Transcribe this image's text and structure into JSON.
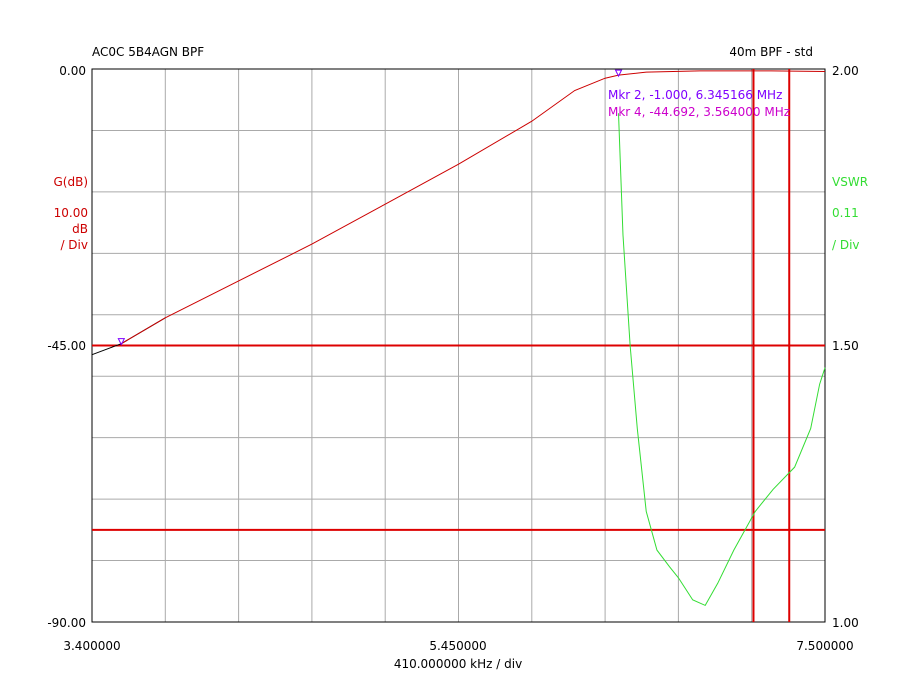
{
  "title_left": "AC0C 5B4AGN BPF",
  "title_right": "40m BPF - std",
  "colors": {
    "gain": "#cc0000",
    "vswr": "#33dd33",
    "marker_lines": "#dd0000",
    "mkr2": "#7f00ff",
    "mkr4": "#cc00cc",
    "grid": "#aaaaaa"
  },
  "left_axis": {
    "label": "G(dB)",
    "scale_value": "10.00",
    "scale_unit": "dB",
    "scale_div": "/ Div",
    "top": "0.00",
    "mid": "-45.00",
    "bottom": "-90.00"
  },
  "right_axis": {
    "label": "VSWR",
    "scale_value": "0.11",
    "scale_div": "/ Div",
    "top": "2.00",
    "mid": "1.50",
    "bottom": "1.00"
  },
  "x_axis": {
    "left": "3.400000",
    "mid": "5.450000",
    "right": "7.500000",
    "per_div": "410.000000 kHz / div"
  },
  "markers": {
    "mkr2": "Mkr 2, -1.000, 6.345166 MHz",
    "mkr4": "Mkr 4, -44.692, 3.564000 MHz"
  },
  "chart_data": {
    "type": "line",
    "xlim": [
      3.4,
      7.5
    ],
    "ylim_left": [
      -90,
      0
    ],
    "ylim_right": [
      1.0,
      2.0
    ],
    "grid": true,
    "series": [
      {
        "name": "G(dB)",
        "axis": "left",
        "x": [
          3.4,
          3.564,
          3.81,
          4.22,
          4.63,
          5.04,
          5.45,
          5.86,
          6.1,
          6.27,
          6.345,
          6.5,
          6.8,
          7.2,
          7.5
        ],
        "y": [
          -46.5,
          -44.7,
          -40.5,
          -34.5,
          -28.5,
          -22.0,
          -15.5,
          -8.5,
          -3.5,
          -1.5,
          -1.0,
          -0.5,
          -0.3,
          -0.3,
          -0.4
        ]
      },
      {
        "name": "VSWR",
        "axis": "right",
        "x": [
          6.345,
          6.37,
          6.41,
          6.45,
          6.5,
          6.56,
          6.63,
          6.68,
          6.76,
          6.83,
          6.9,
          6.99,
          7.11,
          7.21,
          7.33,
          7.42,
          7.47,
          7.5
        ],
        "y": [
          1.92,
          1.7,
          1.5,
          1.35,
          1.2,
          1.13,
          1.1,
          1.08,
          1.04,
          1.03,
          1.07,
          1.13,
          1.2,
          1.24,
          1.28,
          1.35,
          1.43,
          1.46
        ]
      }
    ],
    "marker_points": [
      {
        "name": "Mkr 2",
        "x": 6.345166,
        "y": -1.0
      },
      {
        "name": "Mkr 4",
        "x": 3.564,
        "y": -44.692
      }
    ],
    "hlines_left": [
      -45,
      -75
    ],
    "vlines_x": [
      7.1,
      7.3
    ]
  }
}
